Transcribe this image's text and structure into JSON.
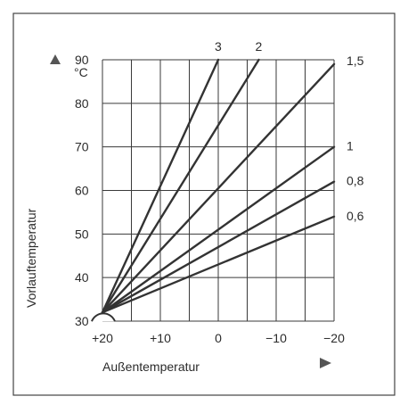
{
  "chart_data": {
    "type": "line",
    "title": "",
    "xlabel": "Außentemperatur",
    "ylabel": "Vorlauftemperatur",
    "y_unit": "°C",
    "x_reversed": true,
    "xlim": [
      20,
      -20
    ],
    "ylim": [
      30,
      90
    ],
    "x_ticks": [
      20,
      10,
      0,
      -10,
      -20
    ],
    "x_tick_labels": [
      "+20",
      "+10",
      "0",
      "−10",
      "−20"
    ],
    "y_ticks": [
      30,
      40,
      50,
      60,
      70,
      80,
      90
    ],
    "y_tick_labels": [
      "30",
      "40",
      "50",
      "60",
      "70",
      "80",
      "90"
    ],
    "grid": true,
    "origin_point": {
      "x": 20,
      "y": 32
    },
    "series": [
      {
        "name": "3",
        "x": [
          20,
          0
        ],
        "y": [
          32,
          90
        ]
      },
      {
        "name": "2",
        "x": [
          20,
          -7
        ],
        "y": [
          32,
          90
        ]
      },
      {
        "name": "1,5",
        "x": [
          20,
          -20
        ],
        "y": [
          32,
          89
        ]
      },
      {
        "name": "1",
        "x": [
          20,
          -20
        ],
        "y": [
          32,
          70
        ]
      },
      {
        "name": "0,8",
        "x": [
          20,
          -20
        ],
        "y": [
          32,
          62
        ]
      },
      {
        "name": "0,6",
        "x": [
          20,
          -20
        ],
        "y": [
          32,
          54
        ]
      }
    ]
  }
}
